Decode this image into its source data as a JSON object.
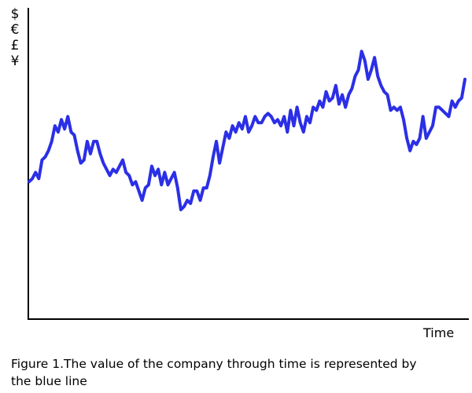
{
  "chart_data": {
    "type": "line",
    "y_label": "$€£¥",
    "x_label": "Time",
    "caption": "Figure 1.The value of the company through time is represented by the blue line",
    "color": "#2b2fe6",
    "ylim": [
      0,
      100
    ],
    "values": [
      44,
      45,
      47,
      45,
      51,
      52,
      54,
      57,
      62,
      60,
      64,
      61,
      65,
      60,
      59,
      54,
      50,
      51,
      57,
      53,
      57,
      57,
      53,
      50,
      48,
      46,
      48,
      47,
      49,
      51,
      47,
      46,
      43,
      44,
      41,
      38,
      42,
      43,
      49,
      46,
      48,
      43,
      47,
      43,
      45,
      47,
      42,
      35,
      36,
      38,
      37,
      41,
      41,
      38,
      42,
      42,
      46,
      52,
      57,
      50,
      55,
      60,
      58,
      62,
      60,
      63,
      61,
      65,
      60,
      62,
      65,
      63,
      63,
      65,
      66,
      65,
      63,
      64,
      62,
      65,
      60,
      67,
      62,
      68,
      63,
      60,
      65,
      63,
      68,
      67,
      70,
      68,
      73,
      70,
      71,
      75,
      69,
      72,
      68,
      72,
      74,
      78,
      80,
      86,
      83,
      77,
      80,
      84,
      78,
      75,
      73,
      72,
      67,
      68,
      67,
      68,
      64,
      58,
      54,
      57,
      56,
      58,
      65,
      58,
      60,
      62,
      68,
      68,
      67,
      66,
      65,
      70,
      68,
      70,
      71,
      77
    ]
  }
}
